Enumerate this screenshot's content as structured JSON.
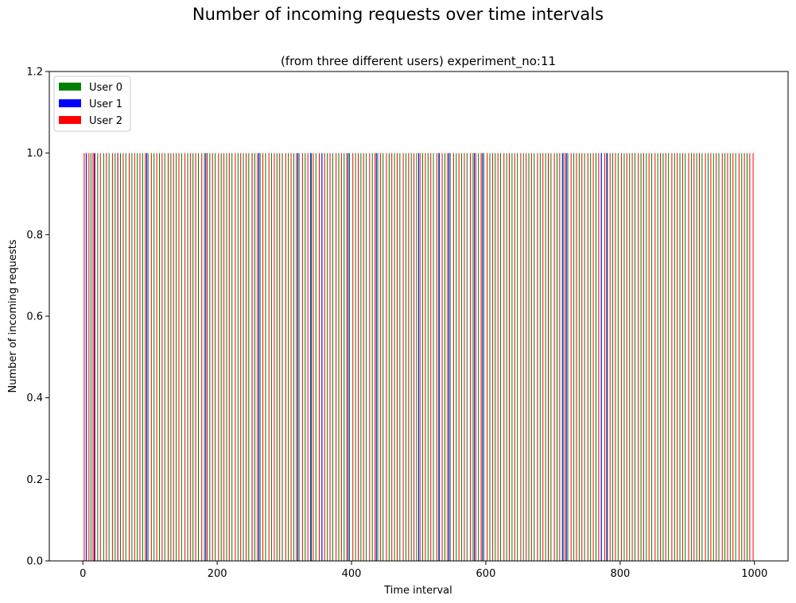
{
  "chart_data": {
    "type": "bar",
    "title": "Number of incoming requests over time intervals",
    "subtitle": "(from three different users) experiment_no:11",
    "xlabel": "Time interval",
    "ylabel": "Number of incoming requests",
    "xlim": [
      -50,
      1050
    ],
    "ylim": [
      0,
      1.2
    ],
    "xticks": [
      0,
      200,
      400,
      600,
      800,
      1000
    ],
    "xtick_labels": [
      "0",
      "200",
      "400",
      "600",
      "800",
      "1000"
    ],
    "yticks": [
      0,
      0.2,
      0.4,
      0.6,
      0.8,
      1.0,
      1.2
    ],
    "ytick_labels": [
      "0.0",
      "0.2",
      "0.4",
      "0.6",
      "0.8",
      "1.0",
      "1.2"
    ],
    "grid": false,
    "legend_position": "upper-left",
    "bar_width": 1,
    "series": [
      {
        "name": "User 0",
        "color": "#008000",
        "x": [
          5,
          12,
          22,
          31,
          39,
          48,
          56,
          64,
          73,
          81,
          89,
          97,
          106,
          114,
          122,
          131,
          139,
          147,
          156,
          164,
          172,
          181,
          189,
          197,
          206,
          214,
          222,
          231,
          239,
          247,
          256,
          264,
          272,
          281,
          289,
          297,
          306,
          314,
          322,
          331,
          339,
          347,
          356,
          364,
          372,
          381,
          389,
          397,
          406,
          414,
          422,
          431,
          439,
          447,
          456,
          464,
          472,
          481,
          489,
          497,
          506,
          514,
          522,
          531,
          539,
          547,
          556,
          564,
          572,
          581,
          589,
          597,
          606,
          614,
          622,
          631,
          639,
          647,
          656,
          664,
          672,
          681,
          689,
          697,
          706,
          714,
          722,
          731,
          739,
          747,
          756,
          764,
          772,
          781,
          789,
          797,
          806,
          814,
          822,
          831,
          839,
          847,
          856,
          864,
          872,
          881,
          889,
          897,
          906,
          914,
          922,
          931,
          939,
          947,
          956,
          964,
          972,
          981,
          989
        ],
        "values": [
          1,
          1,
          1,
          1,
          1,
          1,
          1,
          1,
          1,
          1,
          1,
          1,
          1,
          1,
          1,
          1,
          1,
          1,
          1,
          1,
          1,
          1,
          1,
          1,
          1,
          1,
          1,
          1,
          1,
          1,
          1,
          1,
          1,
          1,
          1,
          1,
          1,
          1,
          1,
          1,
          1,
          1,
          1,
          1,
          1,
          1,
          1,
          1,
          1,
          1,
          1,
          1,
          1,
          1,
          1,
          1,
          1,
          1,
          1,
          1,
          1,
          1,
          1,
          1,
          1,
          1,
          1,
          1,
          1,
          1,
          1,
          1,
          1,
          1,
          1,
          1,
          1,
          1,
          1,
          1,
          1,
          1,
          1,
          1,
          1,
          1,
          1,
          1,
          1,
          1,
          1,
          1,
          1,
          1,
          1,
          1,
          1,
          1,
          1,
          1,
          1,
          1,
          1,
          1,
          1,
          1,
          1,
          1,
          1,
          1,
          1,
          1,
          1,
          1,
          1,
          1,
          1,
          1,
          1
        ]
      },
      {
        "name": "User 1",
        "color": "#0000ff",
        "x": [
          5,
          17,
          52,
          95,
          183,
          252,
          262,
          320,
          340,
          356,
          395,
          437,
          500,
          530,
          545,
          583,
          595,
          715,
          720,
          772,
          780
        ],
        "values": [
          1,
          1,
          1,
          1,
          1,
          1,
          1,
          1,
          1,
          1,
          1,
          1,
          1,
          1,
          1,
          1,
          1,
          1,
          1,
          1,
          1
        ]
      },
      {
        "name": "User 2",
        "color": "#ff0000",
        "x": [
          2,
          9,
          15,
          18,
          26,
          35,
          44,
          52,
          60,
          69,
          77,
          85,
          93,
          102,
          110,
          118,
          127,
          135,
          143,
          152,
          160,
          168,
          177,
          185,
          193,
          202,
          210,
          218,
          227,
          235,
          243,
          252,
          260,
          268,
          277,
          285,
          293,
          302,
          310,
          318,
          327,
          335,
          343,
          352,
          360,
          368,
          377,
          385,
          393,
          402,
          410,
          418,
          427,
          435,
          443,
          452,
          460,
          468,
          477,
          485,
          493,
          502,
          510,
          518,
          527,
          535,
          543,
          552,
          560,
          568,
          577,
          585,
          593,
          602,
          610,
          618,
          627,
          635,
          643,
          652,
          660,
          668,
          677,
          685,
          693,
          702,
          710,
          718,
          727,
          735,
          743,
          752,
          760,
          768,
          777,
          785,
          793,
          802,
          810,
          818,
          827,
          835,
          843,
          852,
          860,
          868,
          877,
          885,
          893,
          902,
          910,
          918,
          927,
          935,
          943,
          952,
          960,
          968,
          977,
          985,
          993,
          998
        ],
        "values": [
          1,
          1,
          1,
          1,
          1,
          1,
          1,
          1,
          1,
          1,
          1,
          1,
          1,
          1,
          1,
          1,
          1,
          1,
          1,
          1,
          1,
          1,
          1,
          1,
          1,
          1,
          1,
          1,
          1,
          1,
          1,
          1,
          1,
          1,
          1,
          1,
          1,
          1,
          1,
          1,
          1,
          1,
          1,
          1,
          1,
          1,
          1,
          1,
          1,
          1,
          1,
          1,
          1,
          1,
          1,
          1,
          1,
          1,
          1,
          1,
          1,
          1,
          1,
          1,
          1,
          1,
          1,
          1,
          1,
          1,
          1,
          1,
          1,
          1,
          1,
          1,
          1,
          1,
          1,
          1,
          1,
          1,
          1,
          1,
          1,
          1,
          1,
          1,
          1,
          1,
          1,
          1,
          1,
          1,
          1,
          1,
          1,
          1,
          1,
          1,
          1,
          1,
          1,
          1,
          1,
          1,
          1,
          1,
          1,
          1,
          1,
          1,
          1,
          1,
          1,
          1,
          1,
          1,
          1,
          1,
          1,
          1
        ]
      }
    ]
  }
}
